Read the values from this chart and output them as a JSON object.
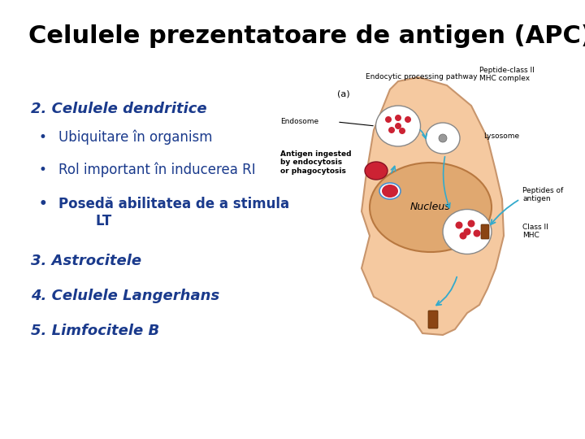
{
  "title": "Celulele prezentatoare de antigen (APC)",
  "title_fontsize": 22,
  "title_color": "#000000",
  "bg_color": "#ffffff",
  "section2_label": "2. Celulele dendritice",
  "section2_color": "#1a3a8c",
  "section2_fontsize": 13,
  "bullet1": "Ubiquitare în organism",
  "bullet2": "Rol important în inducerea RI",
  "bullet3": "Posedă abilitatea de a stimula\n        LT",
  "bullet_color": "#1a3a8c",
  "bullet_fontsize": 12,
  "section3_label": "3. Astrocitele",
  "section4_label": "4. Celulele Langerhans",
  "section5_label": "5. Limfocitele B",
  "section_color": "#1a3a8c",
  "section_fontsize": 13,
  "cell_body_color": "#f5c9a0",
  "cell_edge_color": "#c8956c",
  "nucleus_color": "#e0a870",
  "nucleus_edge": "#b87840",
  "lys_color": "#f5d0b0",
  "red_blob": "#cc2233",
  "white_vesicle": "#ffffff",
  "arrow_color": "#33aacc",
  "text_color_diagram": "#000000",
  "diagram_label_fontsize": 6.5
}
